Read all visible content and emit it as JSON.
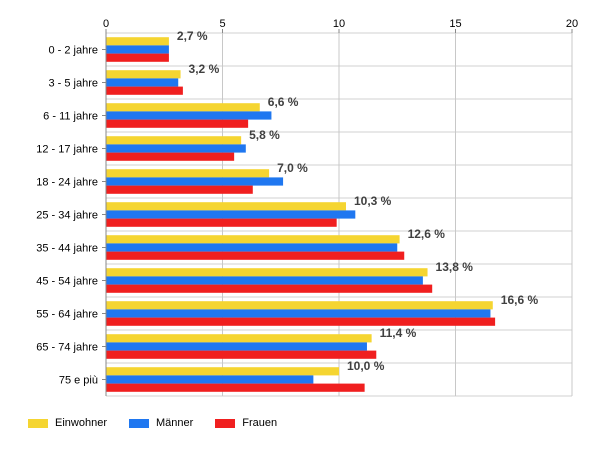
{
  "chart_data": {
    "type": "bar",
    "orientation": "horizontal",
    "categories": [
      "0 - 2 jahre",
      "3 - 5 jahre",
      "6 - 11 jahre",
      "12 - 17 jahre",
      "18 - 24 jahre",
      "25 - 34 jahre",
      "35 - 44 jahre",
      "45 - 54 jahre",
      "55 - 64 jahre",
      "65 - 74 jahre",
      "75 e più"
    ],
    "series": [
      {
        "name": "Einwohner",
        "color": "#F5D531",
        "values": [
          2.7,
          3.2,
          6.6,
          5.8,
          7.0,
          10.3,
          12.6,
          13.8,
          16.6,
          11.4,
          10.0
        ]
      },
      {
        "name": "Männer",
        "color": "#1F77F0",
        "values": [
          2.7,
          3.1,
          7.1,
          6.0,
          7.6,
          10.7,
          12.5,
          13.6,
          16.5,
          11.2,
          8.9
        ]
      },
      {
        "name": "Frauen",
        "color": "#F01F1F",
        "values": [
          2.7,
          3.3,
          6.1,
          5.5,
          6.3,
          9.9,
          12.8,
          14.0,
          16.7,
          11.6,
          11.1
        ]
      }
    ],
    "data_labels": [
      "2,7 %",
      "3,2 %",
      "6,6 %",
      "5,8 %",
      "7,0 %",
      "10,3 %",
      "12,6 %",
      "13,8 %",
      "16,6 %",
      "11,4 %",
      "10,0 %"
    ],
    "xticks": [
      "0",
      "5",
      "10",
      "15",
      "20"
    ],
    "xlim": [
      0,
      20
    ],
    "grid": true,
    "legend_position": "bottom-left",
    "title": "",
    "xlabel": "",
    "ylabel": ""
  }
}
